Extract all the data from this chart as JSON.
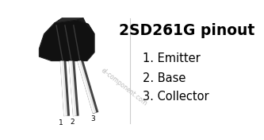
{
  "title": "2SD261G pinout",
  "pins": [
    {
      "number": "1",
      "name": "Emitter"
    },
    {
      "number": "2",
      "name": "Base"
    },
    {
      "number": "3",
      "name": "Collector"
    }
  ],
  "bg_color": "#ffffff",
  "text_color": "#000000",
  "watermark": "el-component.com",
  "title_fontsize": 13.5,
  "pin_fontsize": 10.5,
  "body_color": "#111111",
  "body_edge": "#222222",
  "pin_light": "#f0f0f0",
  "pin_dark": "#555555",
  "divider_color": "#cccccc",
  "watermark_color": "#bbbbbb",
  "watermark_fontsize": 5.5,
  "watermark_rotation": -38,
  "pin_label_fontsize": 6.5
}
